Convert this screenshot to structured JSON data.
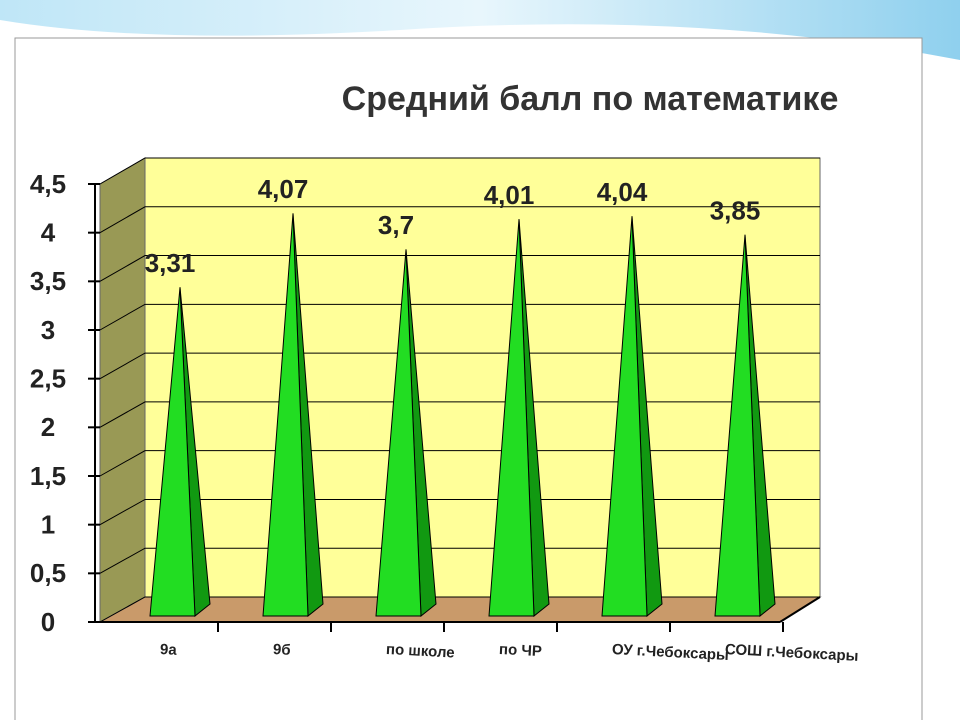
{
  "chart_data": {
    "type": "pyramid",
    "title": "Средний балл по математике",
    "categories": [
      "9а",
      "9б",
      "по школе",
      "по ЧР",
      "ОУ г.Чебоксары",
      "СОШ г.Чебоксары"
    ],
    "values": [
      3.31,
      4.07,
      3.7,
      4.01,
      4.04,
      3.85
    ],
    "value_labels": [
      "3,31",
      "4,07",
      "3,7",
      "4,01",
      "4,04",
      "3,85"
    ],
    "color": "#22dd22",
    "ylim": [
      0,
      4.5
    ],
    "yticks": [
      0,
      {
        "value": 0.5,
        "label": "0,5"
      },
      1,
      {
        "value": 1.5,
        "label": "1,5"
      },
      2,
      {
        "value": 2.5,
        "label": "2,5"
      },
      3,
      {
        "value": 3.5,
        "label": "3,5"
      },
      4,
      {
        "value": 4.5,
        "label": "4,5"
      }
    ],
    "grid": true
  }
}
